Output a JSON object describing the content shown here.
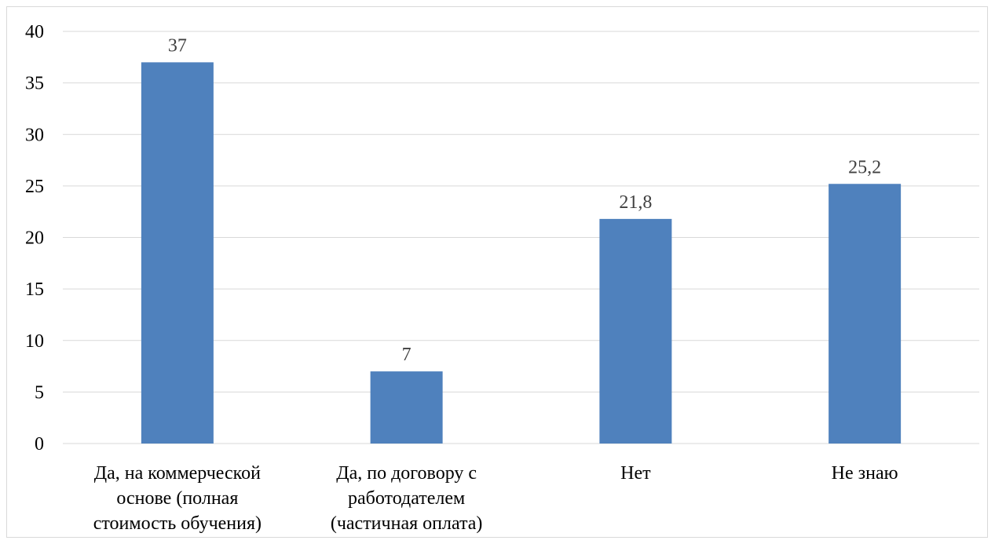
{
  "chart_data": {
    "type": "bar",
    "categories": [
      [
        "Да, на коммерческой",
        "основе (полная",
        "стоимость обучения)"
      ],
      [
        "Да, по договору с",
        "работодателем",
        "(частичная оплата)"
      ],
      [
        "Нет"
      ],
      [
        "Не знаю"
      ]
    ],
    "values": [
      37,
      7,
      21.8,
      25.2
    ],
    "data_labels": [
      "37",
      "7",
      "21,8",
      "25,2"
    ],
    "ylim": [
      0,
      40
    ],
    "yticks": [
      0,
      5,
      10,
      15,
      20,
      25,
      30,
      35,
      40
    ],
    "grid": true,
    "legend": "none",
    "colors": {
      "bar": "#4f81bd",
      "grid": "#d9d9d9",
      "axis": "#d9d9d9"
    }
  }
}
